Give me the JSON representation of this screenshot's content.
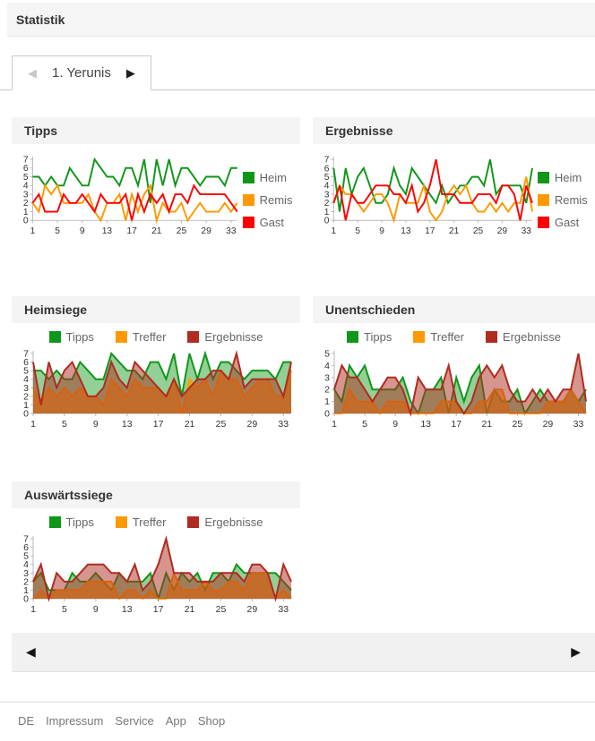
{
  "header": {
    "title": "Statistik"
  },
  "tab": {
    "label": "1. Yerunis",
    "prev_icon": "◀",
    "next_icon": "▶"
  },
  "colors": {
    "heim_green": "#109618",
    "remis_orange": "#FF9900",
    "gast_red": "#FF0000",
    "ergebnisse_brick": "#B02B20",
    "panel_header_bg": "#f4f4f4",
    "axis_gray": "#b8b8b8"
  },
  "charts": [
    {
      "id": "tipps",
      "title": "Tipps",
      "type": "line",
      "ylim": [
        0,
        7
      ],
      "xticks": [
        1,
        5,
        9,
        13,
        17,
        21,
        25,
        29,
        33
      ],
      "legend_position": "right",
      "series": [
        {
          "name": "Heim",
          "color": "#109618",
          "values": [
            5,
            5,
            4,
            5,
            4,
            4,
            6,
            5,
            4,
            4,
            7,
            6,
            5,
            5,
            4,
            6,
            6,
            4,
            7,
            2,
            7,
            4,
            7,
            4,
            6,
            6,
            5,
            4,
            5,
            5,
            5,
            4,
            6,
            6
          ]
        },
        {
          "name": "Remis",
          "color": "#FF9900",
          "values": [
            2,
            1,
            4,
            3,
            4,
            2,
            2,
            2,
            2,
            3,
            1,
            0,
            2,
            2,
            3,
            0,
            3,
            1,
            3,
            4,
            0,
            2,
            1,
            1,
            2,
            0,
            1,
            2,
            1,
            1,
            1,
            2,
            1,
            2
          ]
        },
        {
          "name": "Gast",
          "color": "#FF0000",
          "values": [
            2,
            3,
            1,
            1,
            1,
            3,
            2,
            2,
            3,
            2,
            1,
            3,
            2,
            2,
            2,
            3,
            0,
            3,
            1,
            3,
            2,
            3,
            1,
            3,
            3,
            2,
            4,
            3,
            3,
            3,
            3,
            3,
            2,
            1
          ]
        }
      ]
    },
    {
      "id": "ergebnisse",
      "title": "Ergebnisse",
      "type": "line",
      "ylim": [
        0,
        7
      ],
      "xticks": [
        1,
        5,
        9,
        13,
        17,
        21,
        25,
        29,
        33
      ],
      "legend_position": "right",
      "series": [
        {
          "name": "Heim",
          "color": "#109618",
          "values": [
            6,
            1,
            6,
            3,
            5,
            6,
            4,
            2,
            2,
            3,
            6,
            4,
            3,
            6,
            5,
            4,
            3,
            2,
            4,
            2,
            3,
            4,
            4,
            5,
            5,
            4,
            7,
            3,
            4,
            4,
            4,
            4,
            2,
            6
          ]
        },
        {
          "name": "Remis",
          "color": "#FF9900",
          "values": [
            2,
            4,
            3,
            3,
            2,
            1,
            2,
            3,
            3,
            2,
            0,
            3,
            2,
            2,
            2,
            4,
            1,
            0,
            1,
            3,
            4,
            3,
            4,
            2,
            1,
            1,
            2,
            1,
            2,
            1,
            2,
            2,
            5,
            1
          ]
        },
        {
          "name": "Gast",
          "color": "#FF0000",
          "values": [
            2,
            4,
            0,
            3,
            2,
            2,
            3,
            4,
            4,
            4,
            3,
            3,
            2,
            4,
            1,
            2,
            4,
            7,
            3,
            3,
            3,
            2,
            2,
            2,
            3,
            3,
            3,
            2,
            4,
            4,
            3,
            0,
            4,
            2
          ]
        }
      ]
    },
    {
      "id": "heimsiege",
      "title": "Heimsiege",
      "type": "area",
      "ylim": [
        0,
        7
      ],
      "xticks": [
        1,
        5,
        9,
        13,
        17,
        21,
        25,
        29,
        33
      ],
      "legend_position": "top",
      "series": [
        {
          "name": "Tipps",
          "color": "#109618",
          "fill_opacity": 0.45,
          "values": [
            5,
            5,
            4,
            5,
            4,
            4,
            6,
            5,
            4,
            4,
            7,
            6,
            5,
            5,
            4,
            6,
            6,
            4,
            7,
            2,
            7,
            4,
            7,
            4,
            6,
            6,
            5,
            4,
            5,
            5,
            5,
            4,
            6,
            6
          ]
        },
        {
          "name": "Treffer",
          "color": "#FF9900",
          "fill_opacity": 0.62,
          "values": [
            3,
            1,
            3,
            2,
            3,
            2,
            3,
            2,
            2,
            1,
            4,
            3,
            2,
            4,
            3,
            3,
            3,
            2,
            4,
            0,
            4,
            3,
            4,
            2,
            5,
            4,
            4,
            2,
            3,
            4,
            4,
            2,
            2,
            5
          ]
        },
        {
          "name": "Ergebnisse",
          "color": "#B02B20",
          "fill_opacity": 0.5,
          "values": [
            6,
            1,
            6,
            3,
            5,
            6,
            4,
            2,
            2,
            3,
            6,
            4,
            3,
            6,
            5,
            4,
            3,
            2,
            4,
            2,
            3,
            4,
            4,
            5,
            5,
            4,
            7,
            3,
            4,
            4,
            4,
            4,
            2,
            6
          ]
        }
      ]
    },
    {
      "id": "unentschieden",
      "title": "Unentschieden",
      "type": "area",
      "ylim": [
        0,
        5
      ],
      "xticks": [
        1,
        5,
        9,
        13,
        17,
        21,
        25,
        29,
        33
      ],
      "legend_position": "top",
      "series": [
        {
          "name": "Tipps",
          "color": "#109618",
          "fill_opacity": 0.45,
          "values": [
            2,
            1,
            4,
            3,
            4,
            2,
            2,
            2,
            2,
            3,
            1,
            0,
            2,
            2,
            3,
            0,
            3,
            1,
            3,
            4,
            0,
            2,
            1,
            1,
            2,
            0,
            1,
            2,
            1,
            1,
            1,
            2,
            1,
            2
          ]
        },
        {
          "name": "Treffer",
          "color": "#FF9900",
          "fill_opacity": 0.62,
          "values": [
            0,
            0,
            2,
            1,
            1,
            1,
            0,
            1,
            1,
            1,
            0,
            0,
            0,
            0,
            1,
            1,
            1,
            0,
            0,
            1,
            1,
            2,
            2,
            0,
            0,
            0,
            0,
            0,
            1,
            1,
            1,
            2,
            1,
            0
          ]
        },
        {
          "name": "Ergebnisse",
          "color": "#B02B20",
          "fill_opacity": 0.5,
          "values": [
            2,
            4,
            3,
            3,
            2,
            1,
            2,
            3,
            3,
            2,
            0,
            3,
            2,
            2,
            2,
            4,
            1,
            0,
            1,
            3,
            4,
            3,
            4,
            2,
            1,
            1,
            2,
            1,
            2,
            1,
            2,
            2,
            5,
            1
          ]
        }
      ]
    },
    {
      "id": "auswaertssiege",
      "title": "Auswärtssiege",
      "type": "area",
      "ylim": [
        0,
        7
      ],
      "xticks": [
        1,
        5,
        9,
        13,
        17,
        21,
        25,
        29,
        33
      ],
      "legend_position": "top",
      "series": [
        {
          "name": "Tipps",
          "color": "#109618",
          "fill_opacity": 0.45,
          "values": [
            2,
            3,
            1,
            1,
            1,
            3,
            2,
            2,
            3,
            2,
            1,
            3,
            2,
            2,
            2,
            3,
            0,
            3,
            1,
            3,
            2,
            3,
            1,
            3,
            3,
            2,
            4,
            3,
            3,
            3,
            3,
            3,
            2,
            1
          ]
        },
        {
          "name": "Treffer",
          "color": "#FF9900",
          "fill_opacity": 0.62,
          "values": [
            0,
            1,
            0,
            1,
            1,
            1,
            1,
            2,
            2,
            2,
            2,
            0,
            1,
            1,
            0,
            1,
            0,
            0,
            3,
            1,
            1,
            1,
            2,
            1,
            1,
            2,
            2,
            1,
            3,
            3,
            3,
            0,
            1,
            0
          ]
        },
        {
          "name": "Ergebnisse",
          "color": "#B02B20",
          "fill_opacity": 0.5,
          "values": [
            2,
            4,
            0,
            3,
            2,
            2,
            3,
            4,
            4,
            4,
            3,
            3,
            2,
            4,
            1,
            2,
            4,
            7,
            3,
            3,
            3,
            2,
            2,
            2,
            3,
            3,
            3,
            2,
            4,
            4,
            3,
            0,
            4,
            2
          ]
        }
      ]
    }
  ],
  "bottom_nav": {
    "prev_icon": "◀",
    "next_icon": "▶"
  },
  "footer": {
    "links": [
      "DE",
      "Impressum",
      "Service",
      "App",
      "Shop"
    ]
  }
}
